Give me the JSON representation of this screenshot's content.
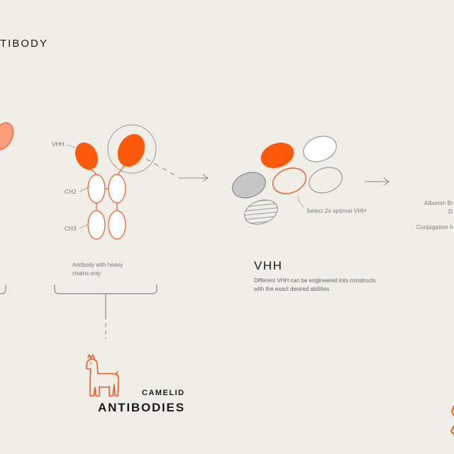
{
  "colors": {
    "background": "#efefe8",
    "accent_orange": "#ff5a0a",
    "light_orange": "#ff9e7a",
    "outline_orange": "#f25a2a",
    "grey_outline": "#9a9a9a",
    "grey_fill": "#c6c6c6",
    "text_dark": "#1a1a1a",
    "text_muted": "#777777"
  },
  "labels": {
    "top_left_title": "TIBODY",
    "vhh_label": "VHH",
    "ch2_label": "CH2",
    "ch3_label": "CH3",
    "heavy_chain_caption": "Antibody with heavy chains only",
    "select_label": "Select 2x optimal VHH",
    "vhh_title": "VHH",
    "vhh_description": "Different VHH can be engineered into constructs with the exact desired abilities",
    "right_line1": "Albumin Bi",
    "right_line2": "D",
    "right_line3": "Conjugation h",
    "camelid_label": "CAMELID",
    "antibodies_label": "ANTIBODIES"
  },
  "icons": {
    "llama": "llama-icon",
    "arrow": "arrow-right-icon"
  }
}
